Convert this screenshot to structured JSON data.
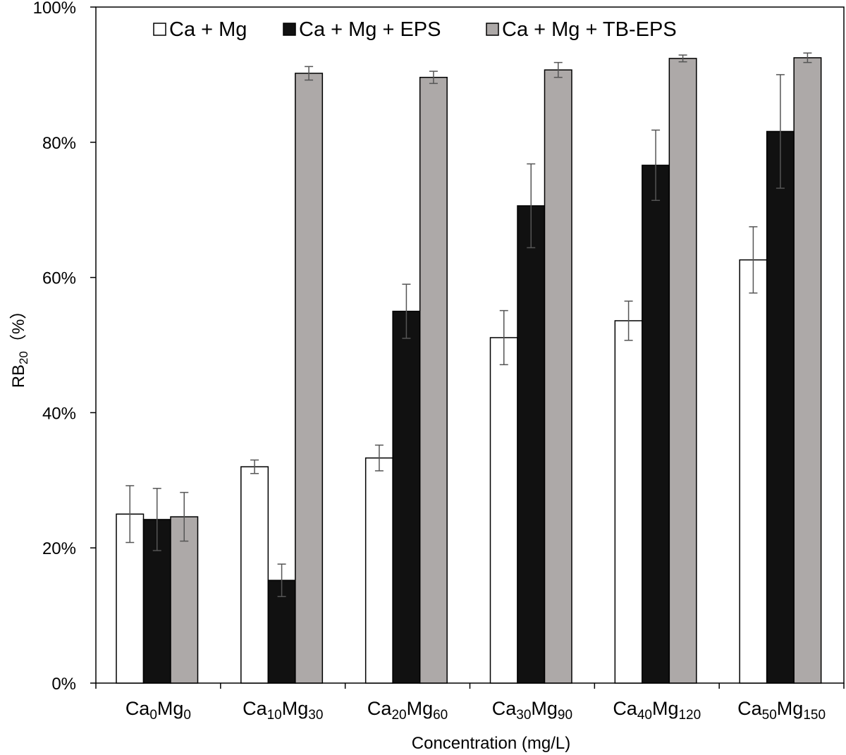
{
  "chart_data": {
    "type": "bar",
    "categories": [
      {
        "base1": "Ca",
        "sub1": "0",
        "base2": "Mg",
        "sub2": "0"
      },
      {
        "base1": "Ca",
        "sub1": "10",
        "base2": "Mg",
        "sub2": "30"
      },
      {
        "base1": "Ca",
        "sub1": "20",
        "base2": "Mg",
        "sub2": "60"
      },
      {
        "base1": "Ca",
        "sub1": "30",
        "base2": "Mg",
        "sub2": "90"
      },
      {
        "base1": "Ca",
        "sub1": "40",
        "base2": "Mg",
        "sub2": "120"
      },
      {
        "base1": "Ca",
        "sub1": "50",
        "base2": "Mg",
        "sub2": "150"
      }
    ],
    "series": [
      {
        "name": "Ca + Mg",
        "color": "#ffffff",
        "values": [
          25.0,
          32.0,
          33.3,
          51.1,
          53.6,
          62.6
        ],
        "errors": [
          4.2,
          1.0,
          1.9,
          4.0,
          2.9,
          4.9
        ]
      },
      {
        "name": "Ca + Mg + EPS",
        "color": "#111111",
        "values": [
          24.2,
          15.2,
          55.0,
          70.6,
          76.6,
          81.6
        ],
        "errors": [
          4.6,
          2.4,
          4.0,
          6.2,
          5.2,
          8.4
        ]
      },
      {
        "name": "Ca + Mg + TB-EPS",
        "color": "#ada9a8",
        "values": [
          24.6,
          90.2,
          89.6,
          90.7,
          92.4,
          92.5
        ],
        "errors": [
          3.6,
          1.0,
          0.9,
          1.1,
          0.5,
          0.7
        ]
      }
    ],
    "yticks": [
      "0%",
      "20%",
      "40%",
      "60%",
      "80%",
      "100%"
    ],
    "ylim": [
      0,
      100
    ],
    "xlabel": "Concentration (mg/L)",
    "ylabel": {
      "main": "RB",
      "sub": "20",
      "suffix": "（%）"
    },
    "legend_position": "top",
    "grid": false
  }
}
